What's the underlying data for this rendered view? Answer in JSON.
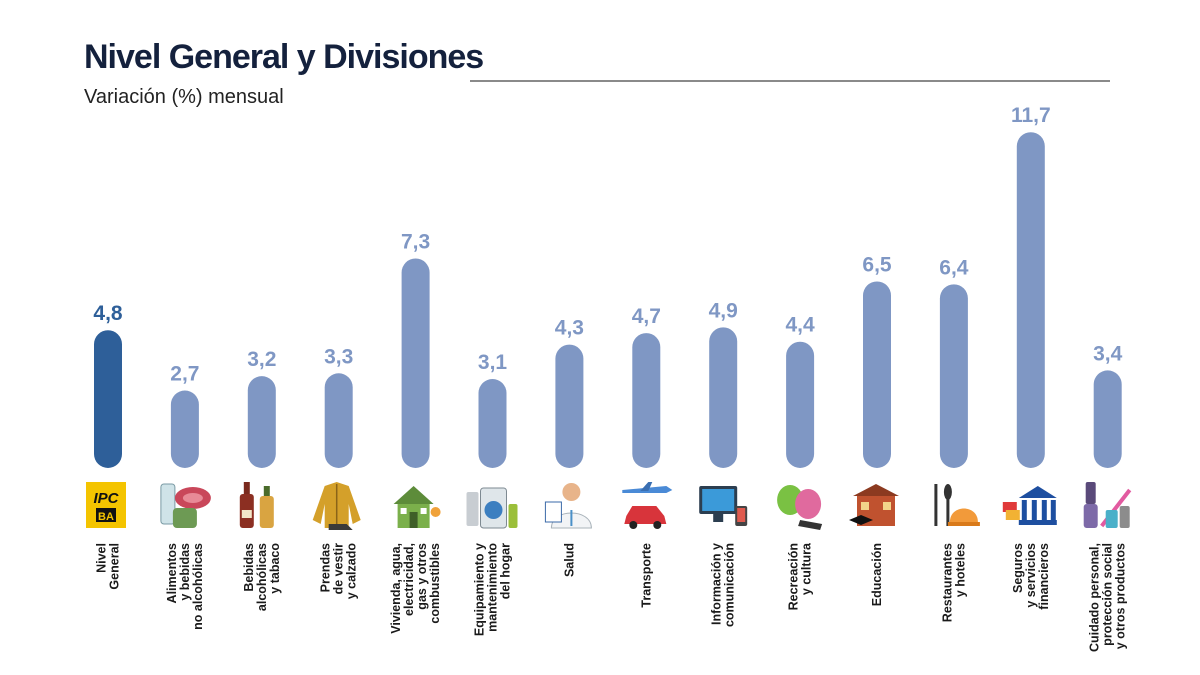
{
  "header": {
    "title": "Nivel General y Divisiones",
    "subtitle": "Variación (%) mensual"
  },
  "colors": {
    "highlight": "#2e5f99",
    "bar": "#7f97c4",
    "highlight_label": "#2e5f99",
    "bar_label": "#7f97c4"
  },
  "chart_data": {
    "type": "bar",
    "title": "Nivel General y Divisiones",
    "subtitle": "Variación (%) mensual",
    "xlabel": "",
    "ylabel": "",
    "ylim": [
      0,
      12
    ],
    "grid": false,
    "legend": "none",
    "categories": [
      [
        "Nivel",
        "General"
      ],
      [
        "Alimentos",
        "y bebidas",
        "no alcohólicas"
      ],
      [
        "Bebidas",
        "alcohólicas",
        "y tabaco"
      ],
      [
        "Prendas",
        "de vestir",
        "y calzado"
      ],
      [
        "Vivienda, agua,",
        "electricidad,",
        "gas y otros",
        "combustibles"
      ],
      [
        "Equipamiento y",
        "mantenimiento",
        "del hogar"
      ],
      [
        "Salud"
      ],
      [
        "Transporte"
      ],
      [
        "Información y",
        "comunicación"
      ],
      [
        "Recreación",
        "y cultura"
      ],
      [
        "Educación"
      ],
      [
        "Restaurantes",
        "y hoteles"
      ],
      [
        "Seguros",
        "y servicios",
        "financieros"
      ],
      [
        "Cuidado personal,",
        "protección social",
        "y otros productos"
      ]
    ],
    "values": [
      4.8,
      2.7,
      3.2,
      3.3,
      7.3,
      3.1,
      4.3,
      4.7,
      4.9,
      4.4,
      6.5,
      6.4,
      11.7,
      3.4
    ],
    "value_labels": [
      "4,8",
      "2,7",
      "3,2",
      "3,3",
      "7,3",
      "3,1",
      "4,3",
      "4,7",
      "4,9",
      "4,4",
      "6,5",
      "6,4",
      "11,7",
      "3,4"
    ],
    "highlight_index": 0,
    "icons": [
      "ipc-ba-logo-icon",
      "food-icon",
      "bottles-icon",
      "jacket-shoe-icon",
      "house-icon",
      "appliances-icon",
      "doctor-icon",
      "car-plane-icon",
      "computer-icon",
      "theater-masks-icon",
      "school-icon",
      "dining-icon",
      "bank-icon",
      "personal-care-icon"
    ],
    "logo_text": [
      "IPC",
      "BA"
    ]
  }
}
